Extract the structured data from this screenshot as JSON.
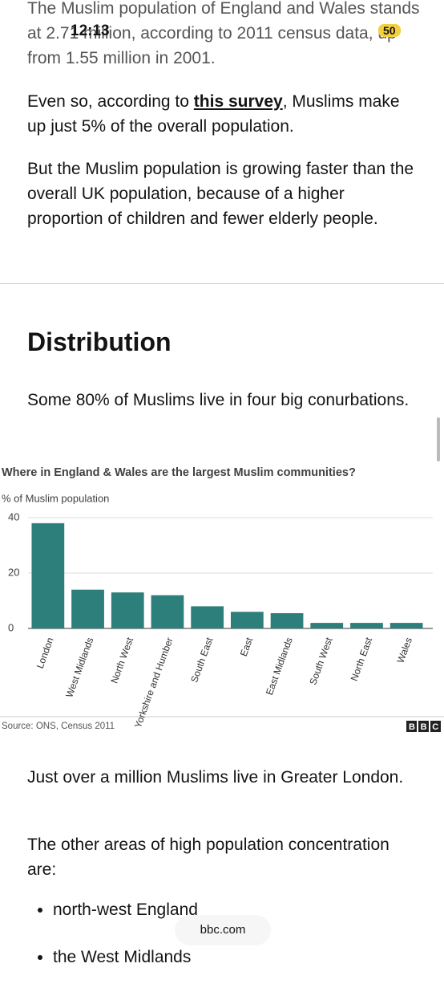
{
  "status_bar": {
    "time": "12:13",
    "battery": "50"
  },
  "article": {
    "intro": "The Muslim population of England and Wales stands at 2.71 million, according to 2011 census data, up from 1.55 million in 2001.",
    "survey_paragraph": {
      "before": "Even so, according to ",
      "link": "this survey",
      "after": ", Muslims make up just 5% of the overall population."
    },
    "growth": "But the Muslim population is growing faster than the overall UK population, because of a higher proportion of children and fewer elderly people.",
    "heading": "Distribution",
    "conurbations": "Some 80% of Muslims live in four big conurbations.",
    "london": "Just over a million Muslims live in Greater London.",
    "other_areas": "The other areas of high population concentration are:",
    "bullets": [
      "north-west England",
      "the West Midlands"
    ]
  },
  "browser": {
    "url": "bbc.com"
  },
  "chart_data": {
    "type": "bar",
    "title": "Where in England & Wales are the largest Muslim communities?",
    "y_label": "% of Muslim population",
    "categories": [
      "London",
      "West Midlands",
      "North West",
      "Yorkshire and Humber",
      "South East",
      "East",
      "East Midlands",
      "South West",
      "North East",
      "Wales"
    ],
    "values": [
      38,
      14,
      13,
      12,
      8,
      6,
      5.5,
      2,
      2,
      2
    ],
    "color": "#2d7f7b",
    "ylim": [
      0,
      40
    ],
    "yticks": [
      0,
      20,
      40
    ],
    "grid": true,
    "source": "Source: ONS, Census 2011",
    "logo": "BBC"
  }
}
